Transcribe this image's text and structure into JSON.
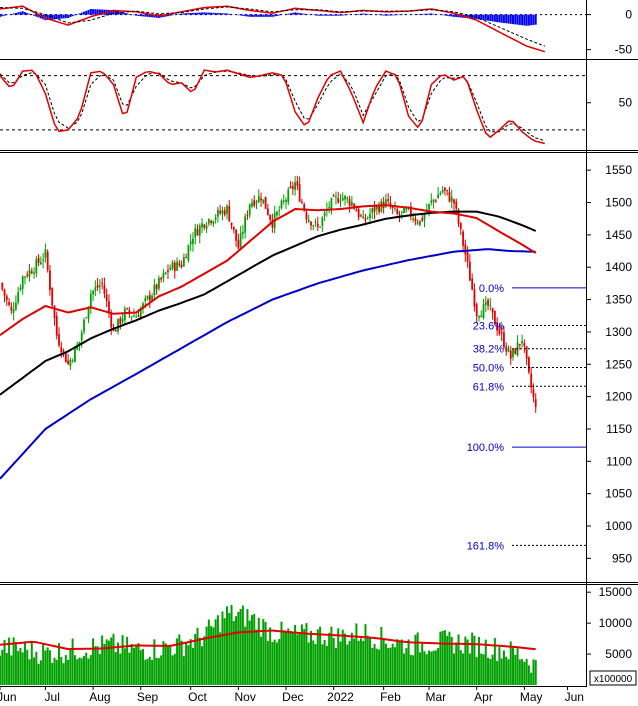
{
  "colors": {
    "up_candle": "#00a000",
    "down_candle": "#e00000",
    "ma_fast": "#e00000",
    "ma_mid": "#000000",
    "ma_slow": "#0000cc",
    "fib": "#0000cc",
    "volume": "#00a000",
    "macd_hist": "#0000ff"
  },
  "chart_data": [
    {
      "type": "bar",
      "panel": "macd",
      "y_ticks": [
        "0",
        "-50"
      ],
      "tick_values": [
        0,
        -50
      ],
      "ylim": [
        -62,
        18
      ],
      "x_days": [
        0,
        10,
        20,
        30,
        40,
        50,
        60,
        70,
        80,
        90,
        100,
        110,
        120,
        130,
        140,
        150,
        160,
        170,
        180,
        190,
        200,
        210,
        220,
        232,
        240
      ],
      "series": [
        {
          "values": [
            8,
            12,
            -5,
            -15,
            -3,
            6,
            4,
            -2,
            4,
            10,
            12,
            6,
            2,
            9,
            6,
            3,
            6,
            4,
            5,
            8,
            2,
            -8,
            -25,
            -45,
            -53
          ]
        },
        {
          "values": [
            10,
            9,
            0,
            -12,
            -8,
            2,
            5,
            1,
            3,
            8,
            11,
            8,
            4,
            7,
            7,
            4,
            5,
            5,
            5,
            7,
            4,
            -4,
            -18,
            -35,
            -45
          ]
        }
      ]
    },
    {
      "type": "line",
      "panel": "stochastic",
      "y_ticks": [
        "50"
      ],
      "tick_values": [
        50
      ],
      "ylim": [
        0,
        95
      ],
      "reference_levels": [
        80,
        20
      ],
      "x_days": [
        0,
        5,
        10,
        15,
        20,
        25,
        30,
        35,
        40,
        45,
        50,
        55,
        60,
        65,
        70,
        75,
        80,
        85,
        90,
        95,
        100,
        105,
        110,
        115,
        120,
        125,
        130,
        135,
        140,
        145,
        150,
        155,
        160,
        165,
        170,
        175,
        180,
        185,
        190,
        195,
        200,
        205,
        210,
        215,
        220,
        225,
        230,
        235,
        240
      ],
      "series": [
        {
          "values": [
            80,
            65,
            85,
            86,
            60,
            18,
            20,
            35,
            83,
            85,
            70,
            30,
            78,
            85,
            82,
            70,
            72,
            60,
            86,
            84,
            86,
            82,
            78,
            80,
            83,
            80,
            40,
            22,
            55,
            80,
            85,
            60,
            28,
            65,
            85,
            80,
            35,
            20,
            70,
            82,
            75,
            80,
            42,
            10,
            20,
            32,
            18,
            8,
            5
          ]
        },
        {
          "values": [
            82,
            70,
            80,
            84,
            70,
            30,
            22,
            30,
            70,
            82,
            75,
            42,
            68,
            82,
            83,
            74,
            72,
            65,
            80,
            84,
            85,
            83,
            80,
            79,
            81,
            81,
            52,
            28,
            48,
            72,
            82,
            68,
            36,
            58,
            80,
            82,
            45,
            25,
            60,
            78,
            77,
            79,
            50,
            18,
            18,
            28,
            22,
            12,
            8
          ]
        }
      ]
    },
    {
      "type": "candlestick",
      "panel": "price",
      "y_ticks": [
        "1550",
        "1500",
        "1450",
        "1400",
        "1350",
        "1300",
        "1250",
        "1200",
        "1150",
        "1100",
        "1050",
        "1000",
        "950"
      ],
      "tick_values": [
        1550,
        1500,
        1450,
        1400,
        1350,
        1300,
        1250,
        1200,
        1150,
        1100,
        1050,
        1000,
        950
      ],
      "ylim": [
        915,
        1575
      ],
      "price_anchors": {
        "day": [
          0,
          5,
          10,
          15,
          20,
          25,
          30,
          35,
          40,
          45,
          50,
          55,
          60,
          65,
          70,
          75,
          80,
          85,
          90,
          95,
          100,
          105,
          110,
          115,
          120,
          125,
          130,
          135,
          140,
          145,
          150,
          155,
          160,
          165,
          170,
          175,
          180,
          185,
          190,
          195,
          200,
          205,
          210,
          215,
          220,
          225,
          230,
          233,
          236,
          240
        ],
        "close": [
          1375,
          1330,
          1385,
          1400,
          1420,
          1295,
          1250,
          1285,
          1360,
          1375,
          1300,
          1330,
          1325,
          1350,
          1375,
          1400,
          1405,
          1450,
          1470,
          1480,
          1490,
          1430,
          1500,
          1510,
          1470,
          1500,
          1530,
          1480,
          1460,
          1495,
          1510,
          1500,
          1470,
          1490,
          1500,
          1480,
          1485,
          1470,
          1500,
          1520,
          1500,
          1420,
          1330,
          1340,
          1300,
          1260,
          1290,
          1230,
          1180,
          1160
        ]
      },
      "ma_fast": {
        "day": [
          0,
          10,
          20,
          25,
          30,
          40,
          50,
          60,
          70,
          80,
          90,
          100,
          110,
          120,
          130,
          140,
          150,
          160,
          170,
          180,
          190,
          200,
          210,
          220,
          230,
          236
        ],
        "values": [
          1295,
          1320,
          1340,
          1335,
          1330,
          1338,
          1328,
          1330,
          1355,
          1370,
          1390,
          1410,
          1440,
          1470,
          1490,
          1488,
          1490,
          1494,
          1496,
          1492,
          1486,
          1483,
          1476,
          1455,
          1435,
          1422
        ]
      },
      "ma_mid": {
        "day": [
          0,
          20,
          30,
          40,
          50,
          60,
          70,
          80,
          90,
          100,
          110,
          120,
          130,
          140,
          150,
          160,
          170,
          180,
          190,
          200,
          210,
          220,
          230,
          236
        ],
        "values": [
          1203,
          1255,
          1270,
          1290,
          1305,
          1318,
          1333,
          1345,
          1358,
          1378,
          1398,
          1418,
          1433,
          1448,
          1458,
          1466,
          1475,
          1480,
          1484,
          1486,
          1486,
          1478,
          1465,
          1456
        ]
      },
      "ma_slow": {
        "day": [
          0,
          20,
          40,
          60,
          80,
          100,
          120,
          140,
          160,
          180,
          200,
          215,
          225,
          236
        ],
        "values": [
          1073,
          1150,
          1196,
          1235,
          1275,
          1315,
          1350,
          1375,
          1395,
          1411,
          1424,
          1428,
          1425,
          1424
        ]
      },
      "fib_levels": [
        {
          "label": "0.0%",
          "price": 1368,
          "style": "solid"
        },
        {
          "label": "23.6%",
          "price": 1310,
          "style": "dotted"
        },
        {
          "label": "38.2%",
          "price": 1274,
          "style": "dotted"
        },
        {
          "label": "50.0%",
          "price": 1245,
          "style": "dotted"
        },
        {
          "label": "61.8%",
          "price": 1216,
          "style": "dotted"
        },
        {
          "label": "100.0%",
          "price": 1122,
          "style": "solid"
        },
        {
          "label": "161.8%",
          "price": 970,
          "style": "dotted"
        }
      ]
    },
    {
      "type": "bar",
      "panel": "volume",
      "y_ticks": [
        "15000",
        "10000",
        "5000"
      ],
      "tick_values": [
        15000,
        10000,
        5000
      ],
      "ylim": [
        0,
        16000
      ],
      "multiplier_label": "x100000",
      "vol_anchors": {
        "day": [
          0,
          10,
          20,
          30,
          40,
          50,
          60,
          70,
          80,
          90,
          100,
          110,
          120,
          130,
          140,
          150,
          160,
          170,
          180,
          190,
          200,
          210,
          220,
          230,
          236
        ],
        "values": [
          6200,
          5800,
          5200,
          5500,
          6100,
          6400,
          5700,
          5900,
          6500,
          8000,
          11500,
          11000,
          8500,
          8000,
          8200,
          7800,
          8500,
          7200,
          6500,
          6800,
          7000,
          6500,
          5800,
          4800,
          3200
        ]
      },
      "ma": {
        "day": [
          0,
          15,
          30,
          45,
          60,
          75,
          90,
          105,
          120,
          135,
          150,
          165,
          180,
          195,
          210,
          225,
          236
        ],
        "values": [
          6500,
          7000,
          5800,
          5900,
          6400,
          6300,
          7500,
          8500,
          8800,
          8300,
          8000,
          7600,
          6900,
          6700,
          6600,
          6200,
          5800
        ]
      },
      "x_labels": [
        "Jun",
        "Jul",
        "Aug",
        "Sep",
        "Oct",
        "Nov",
        "Dec",
        "2022",
        "Feb",
        "Mar",
        "Apr",
        "May",
        "Jun"
      ]
    }
  ]
}
